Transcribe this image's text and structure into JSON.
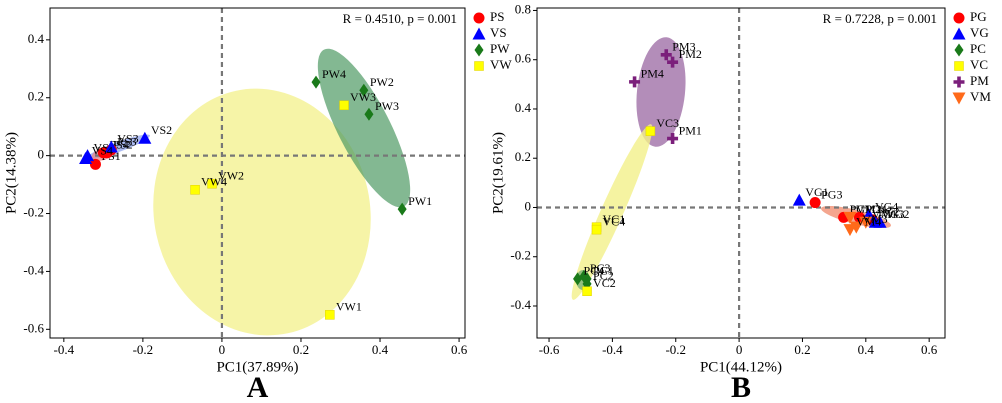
{
  "chart_data": [
    {
      "type": "scatter",
      "panel_label": "A",
      "annotation": "R = 0.4510, p = 0.001",
      "x_label": "PC1(37.89%)",
      "y_label": "PC2(14.38%)",
      "xlim": [
        -0.435,
        0.615
      ],
      "ylim": [
        -0.63,
        0.51
      ],
      "xticks": [
        -0.4,
        -0.2,
        {
          "value": 0,
          "label": "0"
        },
        0.2,
        0.4,
        0.6
      ],
      "yticks": [
        -0.6,
        -0.4,
        -0.2,
        {
          "value": 0,
          "label": "0"
        },
        0.2,
        0.4
      ],
      "zero_lines": true,
      "legend": "right",
      "series": [
        {
          "name": "PS",
          "color": "#ff0000",
          "marker": "circle",
          "x": [
            -0.32,
            -0.29,
            -0.28,
            -0.3
          ],
          "y": [
            -0.03,
            0.01,
            0.02,
            0.01
          ],
          "labels": [
            "PS1",
            "PS2",
            "PS3",
            "PS4"
          ]
        },
        {
          "name": "VS",
          "color": "#0000ff",
          "marker": "triangle",
          "x": [
            -0.34,
            -0.195,
            -0.28,
            -0.345
          ],
          "y": [
            0,
            0.06,
            0.03,
            -0.01
          ],
          "labels": [
            "VS1",
            "VS2",
            "VS3",
            "VS4"
          ]
        },
        {
          "name": "PW",
          "color": "#1a7a1a",
          "marker": "diamond",
          "x": [
            0.456,
            0.359,
            0.372,
            0.238
          ],
          "y": [
            -0.185,
            0.226,
            0.143,
            0.254
          ],
          "labels": [
            "PW1",
            "PW2",
            "PW3",
            "PW4"
          ]
        },
        {
          "name": "VW",
          "color": "#ffff00",
          "marker": "square",
          "x": [
            0.273,
            -0.025,
            0.309,
            -0.068
          ],
          "y": [
            -0.55,
            -0.097,
            0.174,
            -0.118
          ],
          "labels": [
            "VW1",
            "VW2",
            "VW3",
            "VW4"
          ]
        }
      ]
    },
    {
      "type": "scatter",
      "panel_label": "B",
      "annotation": "R = 0.7228, p = 0.001",
      "x_label": "PC1(44.12%)",
      "y_label": "PC2(19.61%)",
      "xlim": [
        -0.638,
        0.65
      ],
      "ylim": [
        -0.53,
        0.81
      ],
      "xticks": [
        -0.6,
        -0.4,
        -0.2,
        {
          "value": 0,
          "label": "0"
        },
        0.2,
        0.4,
        0.6
      ],
      "yticks": [
        -0.4,
        -0.2,
        {
          "value": 0,
          "label": "0"
        },
        0.2,
        0.4,
        0.6,
        0.8
      ],
      "zero_lines": true,
      "legend": "right",
      "series": [
        {
          "name": "PG",
          "color": "#ff0000",
          "marker": "circle",
          "x": [
            0.24,
            0.33,
            0.42,
            0.38
          ],
          "y": [
            0.02,
            -0.04,
            -0.05,
            -0.04
          ],
          "labels": [
            "PG3",
            "PG1",
            "PG2",
            "PG4"
          ]
        },
        {
          "name": "VG",
          "color": "#0000ff",
          "marker": "triangle",
          "x": [
            0.19,
            0.445,
            0.43,
            0.41
          ],
          "y": [
            0.03,
            -0.06,
            -0.06,
            -0.03
          ],
          "labels": [
            "VG1",
            "VG2",
            "VG3",
            "VG4"
          ]
        },
        {
          "name": "PC",
          "color": "#1a7a1a",
          "marker": "diamond",
          "x": [
            -0.48,
            -0.48,
            -0.49,
            -0.51
          ],
          "y": [
            -0.29,
            -0.31,
            -0.28,
            -0.29
          ],
          "labels": [
            "PC1",
            "PC2",
            "PC3",
            "PC4"
          ]
        },
        {
          "name": "VC",
          "color": "#ffff00",
          "marker": "square",
          "x": [
            -0.45,
            -0.48,
            -0.28,
            -0.45
          ],
          "y": [
            -0.08,
            -0.34,
            0.31,
            -0.09
          ],
          "labels": [
            "VC1",
            "VC2",
            "VC3",
            "VC4"
          ]
        },
        {
          "name": "PM",
          "color": "#7b1f7b",
          "marker": "plus",
          "x": [
            -0.21,
            -0.21,
            -0.23,
            -0.33
          ],
          "y": [
            0.28,
            0.59,
            0.62,
            0.51
          ],
          "labels": [
            "PM1",
            "PM2",
            "PM3",
            "PM4"
          ]
        },
        {
          "name": "VM",
          "color": "#ff6a1a",
          "marker": "triangle-down",
          "x": [
            0.4,
            0.35,
            0.37,
            0.35
          ],
          "y": [
            -0.06,
            -0.04,
            -0.08,
            -0.09
          ],
          "labels": [
            "VM1",
            "VM2",
            "VM3",
            "VM4"
          ]
        }
      ]
    }
  ]
}
